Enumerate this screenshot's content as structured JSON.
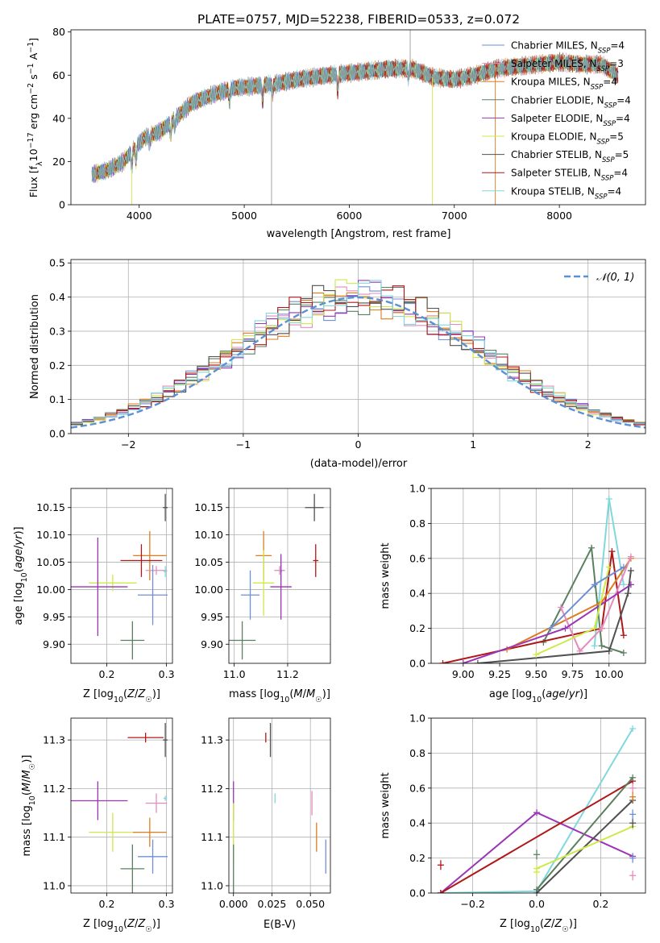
{
  "title": "PLATE=0757, MJD=52238, FIBERID=0533, z=0.072",
  "colors": {
    "Chabrier MILES": "#6f8fd8",
    "Salpeter MILES": "#e58bbd",
    "Kroupa MILES": "#e07b1f",
    "Chabrier ELODIE": "#5a8060",
    "Salpeter ELODIE": "#9b35b5",
    "Kroupa ELODIE": "#cfe84a",
    "Chabrier STELIB": "#505050",
    "Salpeter STELIB": "#b01818",
    "Kroupa STELIB": "#7fd8dc",
    "reference": "#5b8fd6",
    "grey_spectrum": "#999999"
  },
  "legend": [
    {
      "model": "Chabrier MILES",
      "nssp": "4"
    },
    {
      "model": "Salpeter MILES",
      "nssp": "3"
    },
    {
      "model": "Kroupa MILES",
      "nssp": "4"
    },
    {
      "model": "Chabrier ELODIE",
      "nssp": "4"
    },
    {
      "model": "Salpeter ELODIE",
      "nssp": "4"
    },
    {
      "model": "Kroupa ELODIE",
      "nssp": "5"
    },
    {
      "model": "Chabrier STELIB",
      "nssp": "5"
    },
    {
      "model": "Salpeter STELIB",
      "nssp": "4"
    },
    {
      "model": "Kroupa STELIB",
      "nssp": "4"
    }
  ],
  "chart_data": [
    {
      "id": "spectrum",
      "type": "line",
      "xlabel": "wavelength [Angstrom, rest frame]",
      "ylabel": "Flux [f_λ10^-17 erg cm^-2 s^-1 A^-1]",
      "xlim": [
        3350,
        8820
      ],
      "ylim": [
        0,
        81
      ],
      "xticks": [
        4000,
        5000,
        6000,
        7000,
        8000
      ],
      "yticks": [
        0,
        20,
        40,
        60,
        80
      ],
      "continuum": [
        [
          3550,
          14
        ],
        [
          3700,
          16
        ],
        [
          3850,
          20
        ],
        [
          3950,
          26
        ],
        [
          4050,
          31
        ],
        [
          4200,
          34
        ],
        [
          4300,
          38
        ],
        [
          4500,
          47
        ],
        [
          4700,
          51
        ],
        [
          4900,
          54
        ],
        [
          5100,
          55
        ],
        [
          5300,
          56
        ],
        [
          5500,
          58
        ],
        [
          5800,
          60
        ],
        [
          6000,
          61
        ],
        [
          6200,
          62
        ],
        [
          6400,
          63
        ],
        [
          6600,
          63
        ],
        [
          6800,
          59
        ],
        [
          7000,
          58
        ],
        [
          7200,
          60
        ],
        [
          7400,
          63
        ],
        [
          7600,
          64
        ],
        [
          7800,
          65
        ],
        [
          8000,
          66
        ],
        [
          8200,
          65
        ],
        [
          8400,
          65
        ],
        [
          8550,
          60
        ]
      ],
      "dips": [
        [
          3930,
          8
        ],
        [
          3970,
          7
        ],
        [
          4100,
          4
        ],
        [
          4300,
          6
        ],
        [
          4340,
          4
        ],
        [
          4860,
          6
        ],
        [
          5175,
          8
        ],
        [
          5270,
          4
        ],
        [
          5890,
          9
        ],
        [
          6563,
          4
        ]
      ],
      "spikes": [
        [
          3930,
          "Kroupa ELODIE",
          0
        ],
        [
          5260,
          "grey",
          0
        ],
        [
          6790,
          "Kroupa ELODIE",
          0
        ],
        [
          7390,
          "Kroupa MILES",
          0
        ],
        [
          6580,
          "grey",
          81
        ]
      ]
    },
    {
      "id": "residual_hist",
      "type": "step",
      "xlabel": "(data-model)/error",
      "ylabel": "Normed distribution",
      "xlim": [
        -2.5,
        2.5
      ],
      "ylim": [
        0,
        0.51
      ],
      "xticks": [
        -2,
        -1,
        0,
        1,
        2
      ],
      "yticks": [
        0.0,
        0.1,
        0.2,
        0.3,
        0.4,
        0.5
      ],
      "bin_width": 0.1,
      "reference_label": "𝒩(0, 1)",
      "reference_sigma": 1
    },
    {
      "id": "age_vs_Z",
      "type": "errorbar",
      "xlabel": "Z [log10(Z/Z☉)]",
      "ylabel": "age  [log10(age/yr)]",
      "xlim": [
        0.14,
        0.31
      ],
      "ylim": [
        9.865,
        10.185
      ],
      "xticks": [
        0.2,
        0.3
      ],
      "yticks": [
        9.9,
        9.95,
        10.0,
        10.05,
        10.1,
        10.15
      ],
      "points": [
        {
          "model": "Chabrier STELIB",
          "x": 0.298,
          "xerr": 0.004,
          "y": 10.15,
          "yerr": 0.025
        },
        {
          "model": "Kroupa MILES",
          "x": 0.272,
          "xerr": 0.028,
          "y": 10.062,
          "yerr": 0.045
        },
        {
          "model": "Salpeter STELIB",
          "x": 0.258,
          "xerr": 0.035,
          "y": 10.053,
          "yerr": 0.03
        },
        {
          "model": "Salpeter MILES",
          "x": 0.283,
          "xerr": 0.018,
          "y": 10.035,
          "yerr": 0.008
        },
        {
          "model": "Kroupa ELODIE",
          "x": 0.21,
          "xerr": 0.04,
          "y": 10.012,
          "yerr": 0.015
        },
        {
          "model": "Salpeter ELODIE",
          "x": 0.185,
          "xerr": 0.05,
          "y": 10.005,
          "yerr": 0.09
        },
        {
          "model": "Chabrier MILES",
          "x": 0.277,
          "xerr": 0.025,
          "y": 9.99,
          "yerr": 0.055
        },
        {
          "model": "Kroupa STELIB",
          "x": 0.298,
          "xerr": 0.003,
          "y": 10.033,
          "yerr": 0.01
        },
        {
          "model": "Chabrier ELODIE",
          "x": 0.243,
          "xerr": 0.02,
          "y": 9.907,
          "yerr": 0.035
        }
      ]
    },
    {
      "id": "age_vs_mass",
      "type": "errorbar",
      "xlabel": "mass [log10(M/M☉)]",
      "ylabel": "",
      "xlim": [
        10.98,
        11.36
      ],
      "ylim": [
        9.865,
        10.185
      ],
      "xticks": [
        11.0,
        11.2
      ],
      "yticks": [
        9.9,
        9.95,
        10.0,
        10.05,
        10.1,
        10.15
      ],
      "points": [
        {
          "model": "Chabrier STELIB",
          "x": 11.3,
          "xerr": 0.035,
          "y": 10.15,
          "yerr": 0.025
        },
        {
          "model": "Kroupa MILES",
          "x": 11.11,
          "xerr": 0.03,
          "y": 10.062,
          "yerr": 0.045
        },
        {
          "model": "Salpeter STELIB",
          "x": 11.305,
          "xerr": 0.01,
          "y": 10.053,
          "yerr": 0.03
        },
        {
          "model": "Salpeter MILES",
          "x": 11.17,
          "xerr": 0.02,
          "y": 10.035,
          "yerr": 0.008
        },
        {
          "model": "Kroupa STELIB",
          "x": 11.175,
          "xerr": 0.005,
          "y": 10.033,
          "yerr": 0.025
        },
        {
          "model": "Kroupa ELODIE",
          "x": 11.11,
          "xerr": 0.04,
          "y": 10.012,
          "yerr": 0.06
        },
        {
          "model": "Salpeter ELODIE",
          "x": 11.175,
          "xerr": 0.04,
          "y": 10.005,
          "yerr": 0.06
        },
        {
          "model": "Chabrier MILES",
          "x": 11.06,
          "xerr": 0.035,
          "y": 9.99,
          "yerr": 0.045
        },
        {
          "model": "Chabrier ELODIE",
          "x": 11.03,
          "xerr": 0.05,
          "y": 9.907,
          "yerr": 0.035
        }
      ]
    },
    {
      "id": "weight_vs_age",
      "type": "line",
      "xlabel": "age  [log10(age/yr)]",
      "ylabel": "mass weight",
      "xlim": [
        8.78,
        10.25
      ],
      "ylim": [
        0,
        1
      ],
      "xticks": [
        9.0,
        9.25,
        9.5,
        9.75,
        10.0
      ],
      "yticks": [
        0.0,
        0.2,
        0.4,
        0.6,
        0.8,
        1.0
      ],
      "series": [
        {
          "model": "Kroupa STELIB",
          "points": [
            [
              9.9,
              0.1
            ],
            [
              10.0,
              0.94
            ],
            [
              10.1,
              0.45
            ]
          ]
        },
        {
          "model": "Chabrier ELODIE",
          "points": [
            [
              9.55,
              0.12
            ],
            [
              9.88,
              0.66
            ],
            [
              9.95,
              0.1
            ],
            [
              10.1,
              0.06
            ]
          ]
        },
        {
          "model": "Salpeter STELIB",
          "points": [
            [
              8.86,
              0.0
            ],
            [
              9.95,
              0.2
            ],
            [
              10.02,
              0.64
            ],
            [
              10.1,
              0.16
            ]
          ]
        },
        {
          "model": "Kroupa MILES",
          "points": [
            [
              9.3,
              0.08
            ],
            [
              9.95,
              0.35
            ],
            [
              10.15,
              0.6
            ]
          ]
        },
        {
          "model": "Salpeter MILES",
          "points": [
            [
              9.67,
              0.32
            ],
            [
              9.8,
              0.07
            ],
            [
              9.95,
              0.2
            ],
            [
              10.15,
              0.61
            ]
          ]
        },
        {
          "model": "Salpeter ELODIE",
          "points": [
            [
              9.0,
              0.0
            ],
            [
              9.7,
              0.2
            ],
            [
              10.15,
              0.45
            ]
          ]
        },
        {
          "model": "Chabrier STELIB",
          "points": [
            [
              9.1,
              0.0
            ],
            [
              10.0,
              0.07
            ],
            [
              10.13,
              0.4
            ],
            [
              10.15,
              0.53
            ]
          ]
        },
        {
          "model": "Kroupa ELODIE",
          "points": [
            [
              9.5,
              0.05
            ],
            [
              9.9,
              0.2
            ],
            [
              10.0,
              0.55
            ]
          ]
        },
        {
          "model": "Chabrier MILES",
          "points": [
            [
              9.6,
              0.2
            ],
            [
              9.9,
              0.45
            ],
            [
              10.1,
              0.55
            ]
          ]
        }
      ]
    },
    {
      "id": "mass_vs_Z",
      "type": "errorbar",
      "xlabel": "Z [log10(Z/Z☉)]",
      "ylabel": "mass [log10(M/M☉)]",
      "xlim": [
        0.14,
        0.31
      ],
      "ylim": [
        10.985,
        11.345
      ],
      "xticks": [
        0.2,
        0.3
      ],
      "yticks": [
        11.0,
        11.1,
        11.2,
        11.3
      ],
      "points": [
        {
          "model": "Salpeter STELIB",
          "x": 0.265,
          "xerr": 0.03,
          "y": 11.305,
          "yerr": 0.01
        },
        {
          "model": "Chabrier STELIB",
          "x": 0.298,
          "xerr": 0.004,
          "y": 11.3,
          "yerr": 0.035
        },
        {
          "model": "Kroupa STELIB",
          "x": 0.298,
          "xerr": 0.003,
          "y": 11.18,
          "yerr": 0.005
        },
        {
          "model": "Salpeter ELODIE",
          "x": 0.185,
          "xerr": 0.05,
          "y": 11.175,
          "yerr": 0.04
        },
        {
          "model": "Salpeter MILES",
          "x": 0.283,
          "xerr": 0.018,
          "y": 11.17,
          "yerr": 0.02
        },
        {
          "model": "Kroupa ELODIE",
          "x": 0.21,
          "xerr": 0.04,
          "y": 11.11,
          "yerr": 0.04
        },
        {
          "model": "Kroupa MILES",
          "x": 0.272,
          "xerr": 0.028,
          "y": 11.11,
          "yerr": 0.03
        },
        {
          "model": "Chabrier MILES",
          "x": 0.277,
          "xerr": 0.025,
          "y": 11.06,
          "yerr": 0.035
        },
        {
          "model": "Chabrier ELODIE",
          "x": 0.243,
          "xerr": 0.02,
          "y": 11.035,
          "yerr": 0.05
        }
      ]
    },
    {
      "id": "mass_vs_ebv",
      "type": "errorbar",
      "xlabel": "E(B-V)",
      "ylabel": "",
      "xlim": [
        -0.003,
        0.063
      ],
      "ylim": [
        10.985,
        11.345
      ],
      "xticks": [
        0.0,
        0.025,
        0.05
      ],
      "ytick_labels_x": [
        "0.000",
        "0.025",
        "0.050"
      ],
      "yticks": [
        11.0,
        11.1,
        11.2,
        11.3
      ],
      "points": [
        {
          "model": "Salpeter STELIB",
          "x": 0.021,
          "xerr": 0.0,
          "y": 11.305,
          "yerr": 0.01
        },
        {
          "model": "Chabrier STELIB",
          "x": 0.024,
          "xerr": 0.0,
          "y": 11.3,
          "yerr": 0.035
        },
        {
          "model": "Salpeter ELODIE",
          "x": 0.0,
          "xerr": 0.0,
          "y": 11.175,
          "yerr": 0.04
        },
        {
          "model": "Kroupa STELIB",
          "x": 0.027,
          "xerr": 0.0,
          "y": 11.18,
          "yerr": 0.01
        },
        {
          "model": "Salpeter MILES",
          "x": 0.051,
          "xerr": 0.0,
          "y": 11.17,
          "yerr": 0.025
        },
        {
          "model": "Kroupa ELODIE",
          "x": 0.0,
          "xerr": 0.0,
          "y": 11.11,
          "yerr": 0.06
        },
        {
          "model": "Kroupa MILES",
          "x": 0.054,
          "xerr": 0.0,
          "y": 11.1,
          "yerr": 0.03
        },
        {
          "model": "Chabrier MILES",
          "x": 0.06,
          "xerr": 0.0,
          "y": 11.06,
          "yerr": 0.035
        },
        {
          "model": "Chabrier ELODIE",
          "x": 0.0,
          "xerr": 0.0,
          "y": 11.035,
          "yerr": 0.05
        }
      ]
    },
    {
      "id": "weight_vs_Z",
      "type": "line",
      "xlabel": "Z [log10(Z/Z☉)]",
      "ylabel": "mass weight",
      "xlim": [
        -0.33,
        0.34
      ],
      "ylim": [
        0,
        1
      ],
      "xticks": [
        -0.2,
        0.0,
        0.2
      ],
      "yticks": [
        0.0,
        0.2,
        0.4,
        0.6,
        0.8,
        1.0
      ],
      "series": [
        {
          "model": "Kroupa STELIB",
          "points": [
            [
              -0.3,
              0.0
            ],
            [
              0.0,
              0.01
            ],
            [
              0.3,
              0.94
            ]
          ]
        },
        {
          "model": "Salpeter ELODIE",
          "points": [
            [
              -0.3,
              0.0
            ],
            [
              0.0,
              0.46
            ],
            [
              0.3,
              0.21
            ]
          ]
        },
        {
          "model": "Salpeter STELIB",
          "points": [
            [
              -0.3,
              0.0
            ],
            [
              0.3,
              0.64
            ]
          ]
        },
        {
          "model": "Chabrier ELODIE",
          "points": [
            [
              0.0,
              0.02
            ],
            [
              0.3,
              0.66
            ]
          ]
        },
        {
          "model": "Chabrier STELIB",
          "points": [
            [
              0.0,
              0.0
            ],
            [
              0.3,
              0.53
            ]
          ]
        },
        {
          "model": "Kroupa ELODIE",
          "points": [
            [
              0.0,
              0.14
            ],
            [
              0.3,
              0.38
            ]
          ]
        }
      ],
      "markers": [
        {
          "model": "Salpeter STELIB",
          "x": -0.3,
          "y": 0.16
        },
        {
          "model": "Chabrier ELODIE",
          "x": 0.0,
          "y": 0.22
        },
        {
          "model": "Kroupa ELODIE",
          "x": 0.0,
          "y": 0.12
        },
        {
          "model": "Chabrier STELIB",
          "x": 0.3,
          "y": 0.4
        },
        {
          "model": "Salpeter MILES",
          "x": 0.3,
          "y": 0.6
        },
        {
          "model": "Kroupa MILES",
          "x": 0.3,
          "y": 0.55
        },
        {
          "model": "Chabrier MILES",
          "x": 0.3,
          "y": 0.45
        },
        {
          "model": "Salpeter MILES",
          "x": 0.3,
          "y": 0.1
        },
        {
          "model": "Chabrier MILES",
          "x": 0.3,
          "y": 0.2
        }
      ]
    }
  ]
}
